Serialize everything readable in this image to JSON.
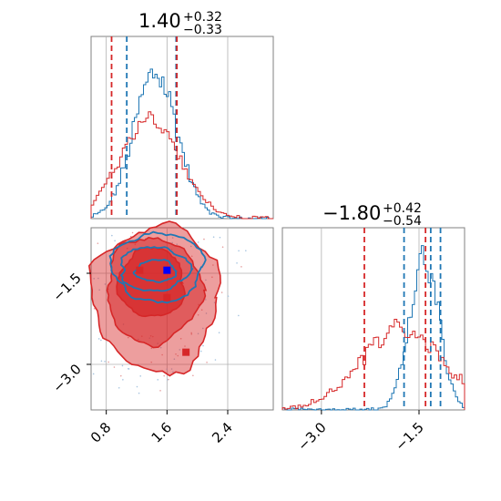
{
  "chart_data": [
    {
      "type": "histogram",
      "panel": "top-left",
      "title": {
        "value": "1.40",
        "plus": "+0.32",
        "minus": "−0.33"
      },
      "xlim": [
        0.6,
        3.0
      ],
      "grid": true,
      "series": [
        {
          "color": "#1f77b4",
          "mode": "narrow"
        },
        {
          "color": "#d62728",
          "mode": "wide"
        }
      ],
      "quantile_lines": [
        {
          "color": "#1f77b4",
          "x": [
            1.07,
            1.72
          ]
        },
        {
          "color": "#d62728",
          "x": [
            0.87,
            1.73
          ]
        }
      ]
    },
    {
      "type": "histogram",
      "panel": "bottom-right",
      "title": {
        "value": "−1.80",
        "plus": "+0.42",
        "minus": "−0.54"
      },
      "xlim": [
        -3.6,
        -0.8
      ],
      "grid": true,
      "xticks": [
        {
          "value": -3.0,
          "label": "−3.0"
        },
        {
          "value": -1.5,
          "label": "−1.5"
        }
      ],
      "series": [
        {
          "color": "#1f77b4",
          "mode": "narrow"
        },
        {
          "color": "#d62728",
          "mode": "wide"
        }
      ],
      "quantile_lines": [
        {
          "color": "#1f77b4",
          "x": [
            -1.73,
            -1.32,
            -1.17
          ]
        },
        {
          "color": "#d62728",
          "x": [
            -2.34,
            -1.4
          ]
        }
      ]
    },
    {
      "type": "contour",
      "panel": "bottom-left",
      "xlim": [
        0.6,
        3.0
      ],
      "ylim": [
        -3.75,
        -0.75
      ],
      "grid": true,
      "xticks": [
        {
          "value": 0.8,
          "label": "0.8"
        },
        {
          "value": 1.6,
          "label": "1.6"
        },
        {
          "value": 2.4,
          "label": "2.4"
        }
      ],
      "yticks": [
        {
          "value": -1.5,
          "label": "−1.5"
        },
        {
          "value": -3.0,
          "label": "−3.0"
        }
      ],
      "series": [
        {
          "color": "#1f77b4",
          "center": [
            1.43,
            -1.43
          ]
        },
        {
          "color": "#d62728",
          "center": [
            1.42,
            -1.78
          ]
        }
      ],
      "markers": [
        {
          "color": "#0000ff",
          "x": 1.6,
          "y": -1.45
        },
        {
          "color": "#d62728",
          "x": 1.24,
          "y": -1.45
        },
        {
          "color": "#d62728",
          "x": 1.6,
          "y": -1.9
        },
        {
          "color": "#d62728",
          "x": 1.85,
          "y": -2.8
        }
      ]
    }
  ]
}
